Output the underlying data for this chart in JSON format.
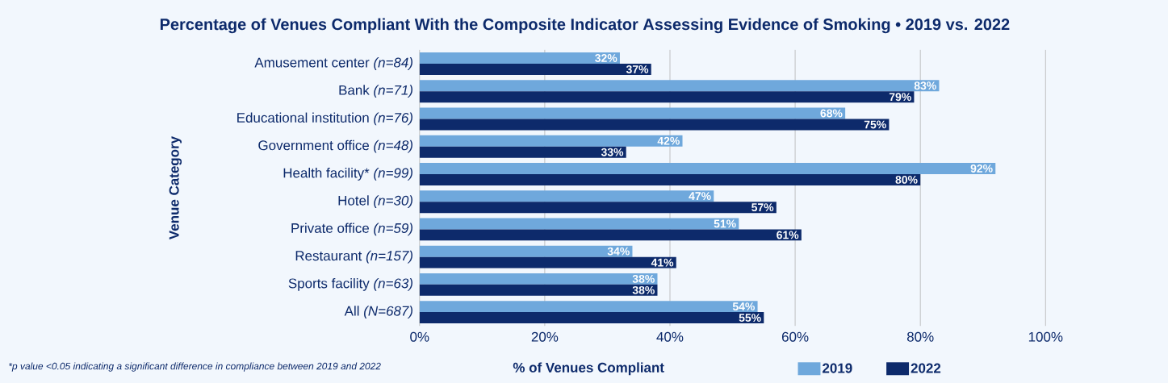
{
  "chart_data": {
    "type": "bar",
    "orientation": "horizontal",
    "title": "Percentage of Venues Compliant With the Composite Indicator Assessing Evidence of Smoking • 2019 vs. 2022",
    "xlabel": "% of Venues Compliant",
    "ylabel": "Venue Category",
    "categories": [
      "Amusement center *(n=84)*",
      "Bank *(n=71)*",
      "Educational institution *(n=76)*",
      "Government office *(n=48)*",
      "Health facility* *(n=99)*",
      "Hotel *(n=30)*",
      "Private office *(n=59)*",
      "Restaurant *(n=157)*",
      "Sports facility *(n=63)*",
      "All *(N=687)*"
    ],
    "series": [
      {
        "name": "2019",
        "color": "#6fa8dc",
        "values": [
          32,
          83,
          68,
          42,
          92,
          47,
          51,
          34,
          38,
          54
        ],
        "value_labels": [
          "32%",
          "83%",
          "68%",
          "42%",
          "92%",
          "47%",
          "51%",
          "34%",
          "38%",
          "54%"
        ]
      },
      {
        "name": "2022",
        "color": "#0d2a6b",
        "values": [
          37,
          79,
          75,
          33,
          80,
          57,
          61,
          41,
          38,
          55
        ],
        "value_labels": [
          "37%",
          "79%",
          "75%",
          "33%",
          "80%",
          "57%",
          "61%",
          "41%",
          "38%",
          "55%"
        ]
      }
    ],
    "xlim": [
      0,
      100
    ],
    "xticks": [
      {
        "value": 0,
        "label": "0%"
      },
      {
        "value": 20,
        "label": "20%"
      },
      {
        "value": 40,
        "label": "40%"
      },
      {
        "value": 60,
        "label": "60%"
      },
      {
        "value": 80,
        "label": "80%"
      },
      {
        "value": 100,
        "label": "100%"
      }
    ],
    "grid": "x",
    "legend": "bottom",
    "annotations": [
      "*p value <0.05 indicating a significant difference in compliance between 2019 and 2022"
    ]
  }
}
